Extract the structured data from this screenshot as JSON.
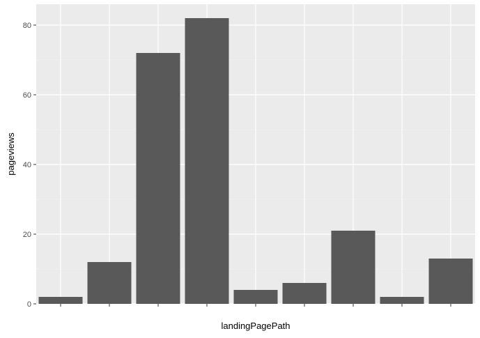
{
  "chart_data": {
    "type": "bar",
    "xlabel": "landingPagePath",
    "ylabel": "pageviews",
    "ylim": [
      0,
      86
    ],
    "yticks": [
      0,
      20,
      40,
      60,
      80
    ],
    "grid": true,
    "colors": {
      "panel": "#ebebeb",
      "grid_major": "#ffffff",
      "grid_minor": "#f5f5f5",
      "bar": "#595959",
      "tick_text": "#4d4d4d",
      "tick_mark": "#333333"
    },
    "categories": [
      "",
      "",
      "",
      "",
      "",
      "",
      "",
      "",
      ""
    ],
    "values": [
      2,
      12,
      72,
      82,
      4,
      6,
      21,
      2,
      13
    ]
  }
}
